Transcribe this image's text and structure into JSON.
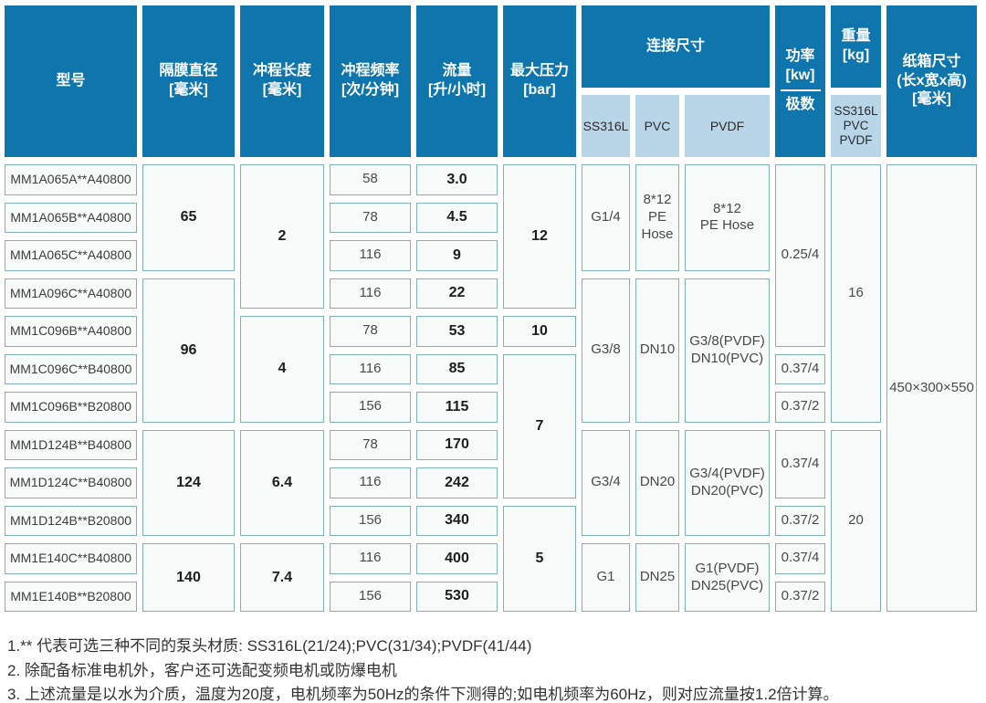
{
  "header": {
    "model": "型号",
    "diaphragm": "隔膜直径\n[毫米]",
    "stroke_length": "冲程长度\n[毫米]",
    "stroke_frequency": "冲程频率\n[次/分钟]",
    "flow": "流量\n[升/小时]",
    "max_pressure": "最大压力\n[bar]",
    "connection": "连接尺寸",
    "connection_sub": [
      "SS316L",
      "PVC",
      "PVDF"
    ],
    "power": "功率\n[kw]",
    "power_sub": "极数",
    "weight": "重量\n[kg]",
    "weight_sub": "SS316L\nPVC\nPVDF",
    "carton": "纸箱尺寸\n(长x宽x高)\n[毫米]"
  },
  "models": [
    "MM1A065A**A40800",
    "MM1A065B**A40800",
    "MM1A065C**A40800",
    "MM1A096C**A40800",
    "MM1C096B**A40800",
    "MM1C096C**B40800",
    "MM1C096B**B20800",
    "MM1D124B**B40800",
    "MM1D124C**B40800",
    "MM1D124B**B20800",
    "MM1E140C**B40800",
    "MM1E140B**B20800"
  ],
  "frequencies": [
    "58",
    "78",
    "116",
    "116",
    "78",
    "116",
    "156",
    "78",
    "116",
    "156",
    "116",
    "156"
  ],
  "flows": [
    "3.0",
    "4.5",
    "9",
    "22",
    "53",
    "85",
    "115",
    "170",
    "242",
    "340",
    "400",
    "530"
  ],
  "diaphragms": [
    "65",
    "96",
    "124",
    "140"
  ],
  "strokes": [
    "2",
    "4",
    "6.4",
    "7.4"
  ],
  "pressures": [
    "12",
    "10",
    "7",
    "5"
  ],
  "connections": [
    {
      "ss316l": "G1/4",
      "pvc": "8*12\nPE\nHose",
      "pvdf": "8*12\nPE Hose"
    },
    {
      "ss316l": "G3/8",
      "pvc": "DN10",
      "pvdf": "G3/8(PVDF)\nDN10(PVC)"
    },
    {
      "ss316l": "G3/4",
      "pvc": "DN20",
      "pvdf": "G3/4(PVDF)\nDN20(PVC)"
    },
    {
      "ss316l": "G1",
      "pvc": "DN25",
      "pvdf": "G1(PVDF)\nDN25(PVC)"
    }
  ],
  "powers": [
    "0.25/4",
    "0.37/4",
    "0.37/2",
    "0.37/4",
    "0.37/2",
    "0.37/4",
    "0.37/2"
  ],
  "weights": [
    "16",
    "20"
  ],
  "carton_size": "450×300×550",
  "notes": [
    "1.** 代表可选三种不同的泵头材质: SS316L(21/24);PVC(31/34);PVDF(41/44)",
    "2. 除配备标准电机外，客户还可选配变频电机或防爆电机",
    "3. 上述流量是以水为介质，温度为20度，电机频率为50Hz的条件下测得的;如电机频率为60Hz，则对应流量按1.2倍计算。"
  ],
  "colors": {
    "header_blue": "#0e76ad",
    "subheader_blue": "#b9d5e8",
    "cell_border": "#7fb3ba",
    "cell_fill": "#f6faf8"
  }
}
